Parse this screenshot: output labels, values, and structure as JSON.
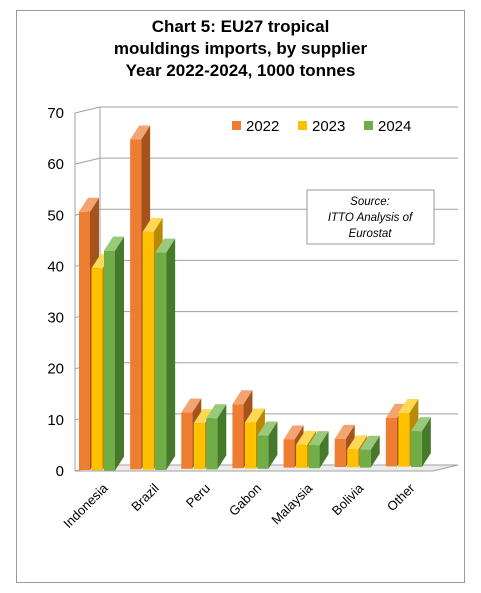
{
  "chart_data": {
    "type": "bar",
    "title": [
      "Chart 5: EU27 tropical",
      "mouldings imports, by supplier",
      "Year 2022-2024, 1000 tonnes"
    ],
    "categories": [
      "Indonesia",
      "Brazil",
      "Peru",
      "Gabon",
      "Malaysia",
      "Bolivia",
      "Other"
    ],
    "series": [
      {
        "name": "2022",
        "values": [
          50.5,
          64.5,
          11.0,
          12.5,
          5.5,
          5.5,
          9.5
        ]
      },
      {
        "name": "2023",
        "values": [
          39.5,
          46.5,
          9.0,
          9.0,
          4.5,
          3.5,
          10.5
        ]
      },
      {
        "name": "2024",
        "values": [
          43.0,
          42.5,
          10.0,
          6.5,
          4.5,
          3.5,
          7.0
        ]
      }
    ],
    "ylim": [
      0,
      70
    ],
    "yticks": [
      0,
      10,
      20,
      30,
      40,
      50,
      60,
      70
    ],
    "xlabel": "",
    "ylabel": "",
    "grid": true,
    "legend_position": "top-right",
    "colors": {
      "2022": {
        "front": "#ee7d31",
        "top": "#f4a471",
        "side": "#a6521c"
      },
      "2023": {
        "front": "#ffc000",
        "top": "#ffd855",
        "side": "#b98a00"
      },
      "2024": {
        "front": "#70ad47",
        "top": "#99c97a",
        "side": "#467a2a"
      }
    },
    "annotation": [
      "Source:",
      "ITTO Analysis of",
      "Eurostat"
    ]
  }
}
